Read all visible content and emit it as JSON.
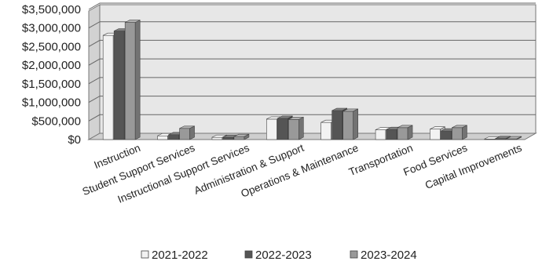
{
  "chart_data": {
    "type": "bar",
    "title": "",
    "xlabel": "",
    "ylabel": "",
    "ylim": [
      0,
      3500000
    ],
    "y_ticks": [
      "$0",
      "$500,000",
      "$1,000,000",
      "$1,500,000",
      "$2,000,000",
      "$2,500,000",
      "$3,000,000",
      "$3,500,000"
    ],
    "y_tick_values": [
      0,
      500000,
      1000000,
      1500000,
      2000000,
      2500000,
      3000000,
      3500000
    ],
    "grid": true,
    "legend_position": "bottom",
    "categories": [
      "Instruction",
      "Student Support Services",
      "Instructional Support Services",
      "Administration & Support",
      "Operations & Maintenance",
      "Transportation",
      "Food Services",
      "Capital Improvements"
    ],
    "series": [
      {
        "name": "2021-2022",
        "color": "#f2f2f2",
        "values": [
          2800000,
          100000,
          60000,
          550000,
          460000,
          260000,
          280000,
          15000
        ]
      },
      {
        "name": "2022-2023",
        "color": "#555555",
        "values": [
          2920000,
          130000,
          60000,
          570000,
          780000,
          270000,
          230000,
          25000
        ]
      },
      {
        "name": "2023-2024",
        "color": "#999999",
        "values": [
          3150000,
          300000,
          80000,
          540000,
          760000,
          320000,
          320000,
          20000
        ]
      }
    ]
  }
}
